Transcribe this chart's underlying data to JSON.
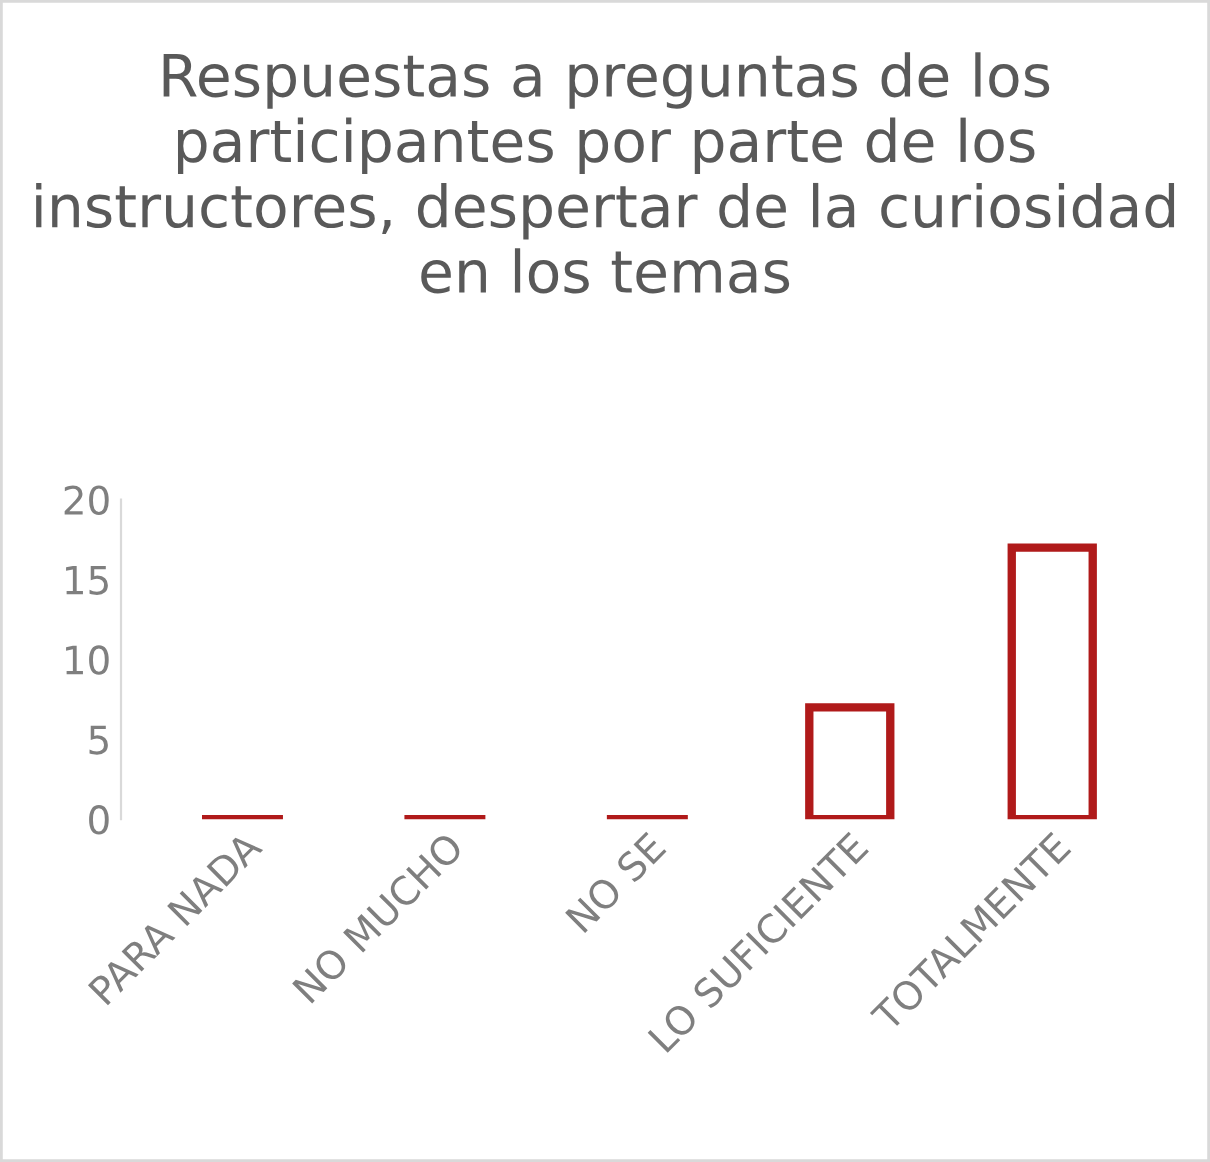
{
  "chart_data": {
    "type": "bar",
    "title": "Respuestas a preguntas de los participantes por parte de los instructores, despertar de la curiosidad en los temas",
    "categories": [
      "PARA NADA",
      "NO MUCHO",
      "NO SE",
      "LO SUFICIENTE",
      "TOTALMENTE"
    ],
    "values": [
      0,
      0,
      0,
      7,
      17
    ],
    "color": "#b01a1a",
    "ylim": [
      0,
      20
    ],
    "yticks": [
      0,
      5,
      10,
      15,
      20
    ],
    "grid": false,
    "legend": false
  }
}
